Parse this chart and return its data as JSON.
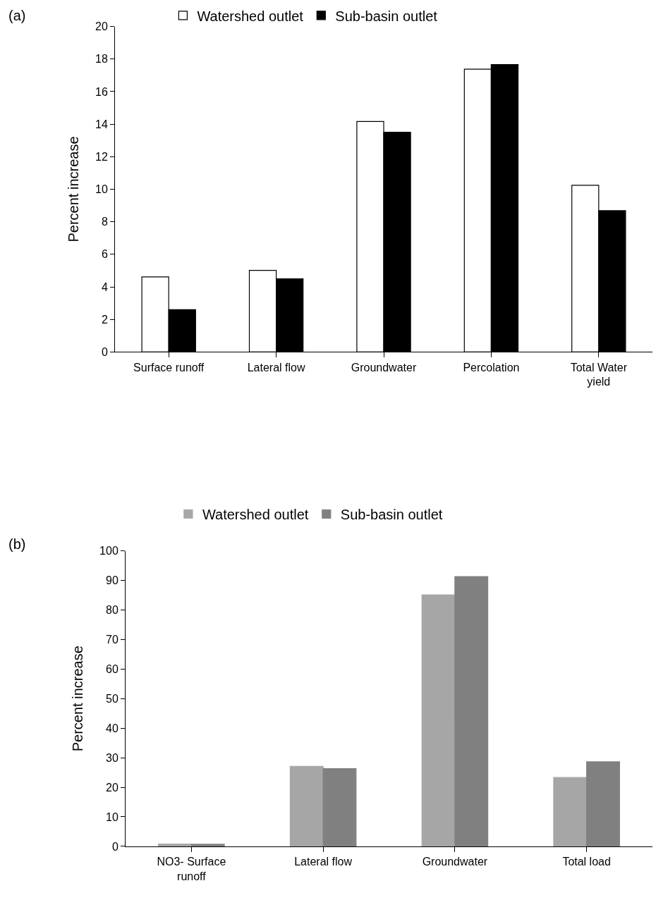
{
  "chart_data": [
    {
      "type": "bar",
      "title": "(a)",
      "ylabel": "Percent increase",
      "categories": [
        "Surface runoff",
        "Lateral flow",
        "Groundwater",
        "Percolation",
        "Total Water yield"
      ],
      "series": [
        {
          "name": "Watershed outlet",
          "color": "#ffffff",
          "values": [
            4.61,
            5.01,
            14.16,
            17.38,
            10.24
          ]
        },
        {
          "name": "Sub-basin outlet",
          "color": "#000000",
          "values": [
            2.6,
            4.49,
            13.5,
            17.66,
            8.68
          ]
        }
      ],
      "ylim": [
        0,
        20
      ],
      "yticks": [
        0,
        2,
        4,
        6,
        8,
        10,
        12,
        14,
        16,
        18,
        20
      ],
      "legend": "top",
      "grid": false
    },
    {
      "type": "bar",
      "title": "(b)",
      "ylabel": "Percent increase",
      "categories": [
        "NO3- Surface runoff",
        "Lateral flow",
        "Groundwater",
        "Total load"
      ],
      "series": [
        {
          "name": "Watershed outlet",
          "color": "#a6a6a6",
          "values": [
            0.8,
            27.1,
            85.1,
            23.3
          ]
        },
        {
          "name": "Sub-basin outlet",
          "color": "#808080",
          "values": [
            0.7,
            26.3,
            91.3,
            28.6
          ]
        }
      ],
      "ylim": [
        0,
        100
      ],
      "yticks": [
        0,
        10,
        20,
        30,
        40,
        50,
        60,
        70,
        80,
        90,
        100
      ],
      "legend": "top",
      "grid": false
    }
  ]
}
